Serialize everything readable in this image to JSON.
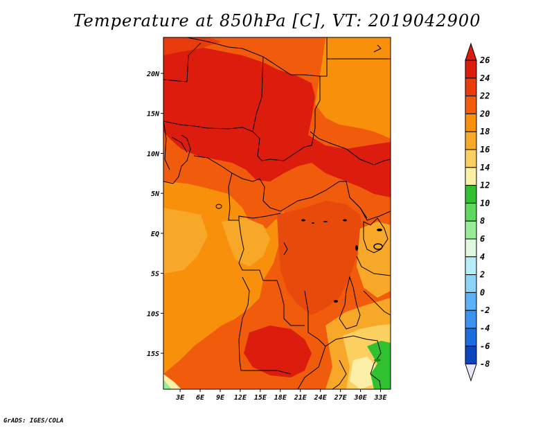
{
  "title": "Temperature at 850hPa [C], VT: 2019042900",
  "credit": "GrADS: IGES/COLA",
  "map": {
    "lat_labels": [
      {
        "lat": 20,
        "label": "20N"
      },
      {
        "lat": 15,
        "label": "15N"
      },
      {
        "lat": 10,
        "label": "10N"
      },
      {
        "lat": 5,
        "label": "5N"
      },
      {
        "lat": 0,
        "label": "EQ"
      },
      {
        "lat": -5,
        "label": "5S"
      },
      {
        "lat": -10,
        "label": "10S"
      },
      {
        "lat": -15,
        "label": "15S"
      }
    ],
    "lon_labels": [
      {
        "lon": 3,
        "label": "3E"
      },
      {
        "lon": 6,
        "label": "6E"
      },
      {
        "lon": 9,
        "label": "9E"
      },
      {
        "lon": 12,
        "label": "12E"
      },
      {
        "lon": 15,
        "label": "15E"
      },
      {
        "lon": 18,
        "label": "18E"
      },
      {
        "lon": 21,
        "label": "21E"
      },
      {
        "lon": 24,
        "label": "24E"
      },
      {
        "lon": 27,
        "label": "27E"
      },
      {
        "lon": 30,
        "label": "30E"
      },
      {
        "lon": 33,
        "label": "33E"
      }
    ]
  },
  "colorbar": {
    "levels": [
      "26",
      "24",
      "22",
      "20",
      "18",
      "16",
      "14",
      "12",
      "10",
      "8",
      "6",
      "4",
      "2",
      "0",
      "-2",
      "-4",
      "-6",
      "-8"
    ],
    "colors": [
      "#dc1c0c",
      "#e83c0c",
      "#f05c0c",
      "#f8900c",
      "#f8a828",
      "#fcd060",
      "#fcf0a8",
      "#30c030",
      "#60d860",
      "#98ec98",
      "#e0f8e0",
      "#b4ecf8",
      "#8cd4f8",
      "#5cb0f8",
      "#3c90f0",
      "#1c6ce0",
      "#0c44c0",
      "#0c1890",
      "#0c0870"
    ],
    "top_arrow_color": "#dc1c0c",
    "bottom_arrow_color": "#e8e8f8"
  }
}
